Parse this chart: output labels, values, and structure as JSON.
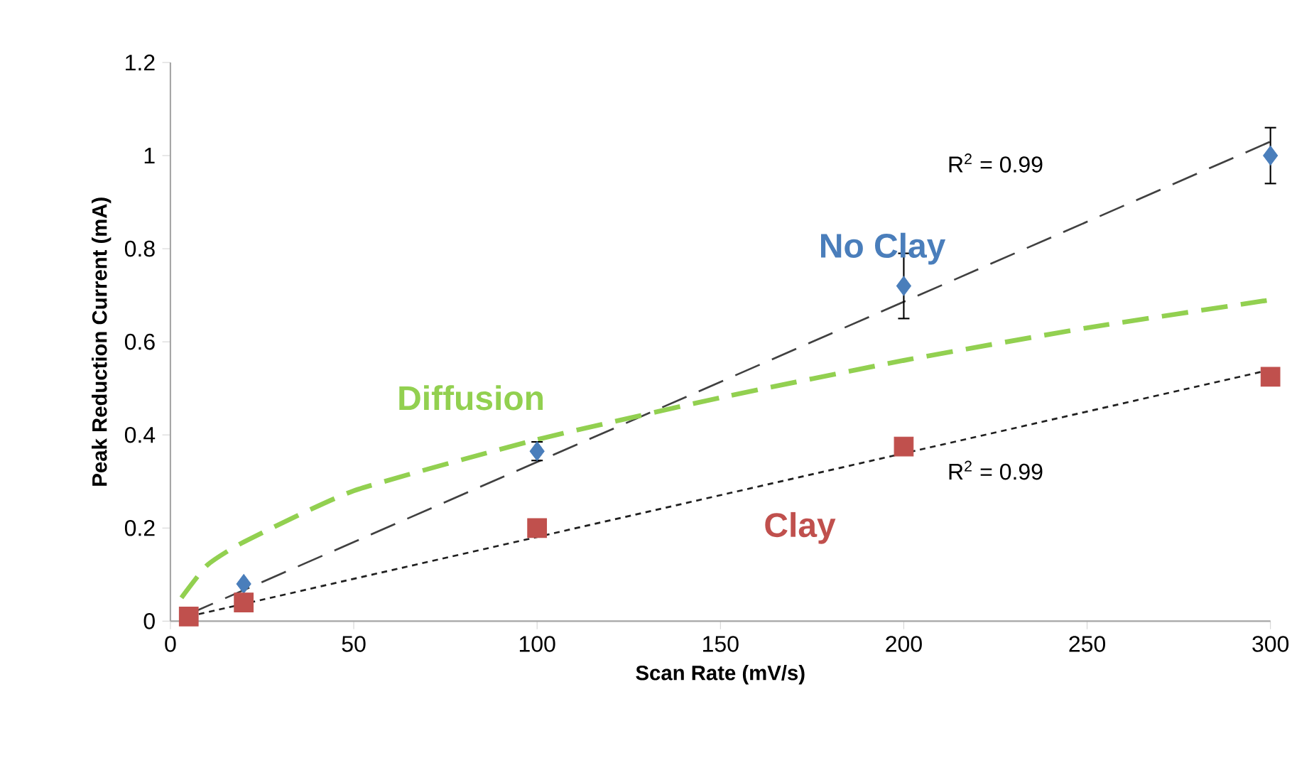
{
  "chart_data": {
    "type": "scatter",
    "xlabel": "Scan Rate (mV/s)",
    "ylabel": "Peak Reduction Current (mA)",
    "xlim": [
      0,
      300
    ],
    "xticks": [
      0,
      50,
      100,
      150,
      200,
      250,
      300
    ],
    "ylim": [
      0,
      1.2
    ],
    "yticks": [
      0,
      0.2,
      0.4,
      0.6,
      0.8,
      1,
      1.2
    ],
    "series": [
      {
        "name": "No Clay",
        "marker": "diamond",
        "color": "#4a7ebb",
        "x": [
          20,
          100,
          200,
          300
        ],
        "values": [
          0.08,
          0.365,
          0.72,
          1.0
        ],
        "errors": [
          null,
          0.02,
          0.07,
          0.06
        ]
      },
      {
        "name": "Clay",
        "marker": "square",
        "color": "#c0504d",
        "x": [
          5,
          20,
          100,
          200,
          300
        ],
        "values": [
          0.01,
          0.04,
          0.2,
          0.375,
          0.525
        ]
      },
      {
        "type": "line",
        "line_style": "dashed",
        "color": "#404040",
        "x": [
          5,
          300
        ],
        "values": [
          0.015,
          1.03
        ]
      },
      {
        "type": "line",
        "line_style": "dotted",
        "color": "#202020",
        "x": [
          5,
          300
        ],
        "values": [
          0.01,
          0.54
        ]
      },
      {
        "name": "Diffusion",
        "type": "line",
        "line_style": "dashed",
        "color": "#92d050",
        "x": [
          3,
          10,
          20,
          50,
          100,
          150,
          200,
          250,
          300
        ],
        "values": [
          0.05,
          0.12,
          0.17,
          0.28,
          0.39,
          0.48,
          0.56,
          0.63,
          0.69
        ]
      }
    ],
    "annotations": [
      "R$^{2}$ = 0.99",
      "R$^{2}$ = 0.99"
    ]
  }
}
